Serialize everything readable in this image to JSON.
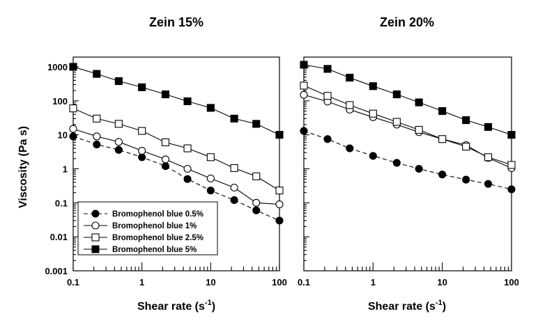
{
  "chart_data": {
    "type": "line",
    "ylabel": "Viscosity (Pa s)",
    "xscale": "log",
    "yscale": "log",
    "xlim": [
      0.1,
      100
    ],
    "ylim": [
      0.001,
      1000
    ],
    "x_ticks": [
      "0.1",
      "1",
      "10",
      "100"
    ],
    "y_ticks": [
      "0.001",
      "0.01",
      "0.1",
      "1",
      "10",
      "100",
      "1000"
    ],
    "legend": {
      "location": "lower-left of left panel",
      "entries": [
        {
          "label": "Bromophenol blue 0.5%",
          "marker": "filled-circle",
          "line": "dashed"
        },
        {
          "label": "Bromophenol blue 1%",
          "marker": "open-circle",
          "line": "solid"
        },
        {
          "label": "Bromophenol blue 2.5%",
          "marker": "open-square",
          "line": "solid"
        },
        {
          "label": "Bromophenol blue 5%",
          "marker": "filled-square",
          "line": "solid"
        }
      ]
    },
    "panels": [
      {
        "title": "Zein 15%",
        "xlabel": "Shear rate (s",
        "xlabel_sup": "-1",
        "xlabel_end": ")",
        "x": [
          0.1,
          0.22,
          0.46,
          1.0,
          2.2,
          4.6,
          10,
          22,
          46,
          100
        ],
        "series": [
          {
            "name": "Bromophenol blue 0.5%",
            "values": [
              9,
              5.2,
              3.6,
              2.2,
              1.2,
              0.5,
              0.23,
              0.12,
              0.06,
              0.03
            ]
          },
          {
            "name": "Bromophenol blue 1%",
            "values": [
              15,
              9,
              6.2,
              3.4,
              1.9,
              1.0,
              0.52,
              0.28,
              0.1,
              0.09
            ]
          },
          {
            "name": "Bromophenol blue 2.5%",
            "values": [
              60,
              30,
              21,
              13,
              6,
              4,
              2.2,
              1.05,
              0.6,
              0.23
            ]
          },
          {
            "name": "Bromophenol blue 5%",
            "values": [
              1000,
              620,
              380,
              250,
              155,
              97,
              62,
              30,
              21,
              10
            ]
          }
        ]
      },
      {
        "title": "Zein 20%",
        "xlabel": "Shear rate (s",
        "xlabel_sup": "-1",
        "xlabel_end": ")",
        "x": [
          0.1,
          0.22,
          0.46,
          1.0,
          2.2,
          4.6,
          10,
          22,
          46,
          100
        ],
        "series": [
          {
            "name": "Bromophenol blue 0.5%",
            "values": [
              13,
              7.5,
              4,
              2.4,
              1.5,
              1.0,
              0.68,
              0.48,
              0.36,
              0.25
            ]
          },
          {
            "name": "Bromophenol blue 1%",
            "values": [
              150,
              95,
              55,
              33,
              20,
              12,
              7.5,
              5,
              2.1,
              1.05
            ]
          },
          {
            "name": "Bromophenol blue 2.5%",
            "values": [
              280,
              140,
              75,
              42,
              24,
              14,
              7.5,
              4.5,
              2.2,
              1.3
            ]
          },
          {
            "name": "Bromophenol blue 5%",
            "values": [
              1150,
              870,
              480,
              270,
              155,
              90,
              50,
              27,
              17,
              10
            ]
          }
        ]
      }
    ]
  }
}
